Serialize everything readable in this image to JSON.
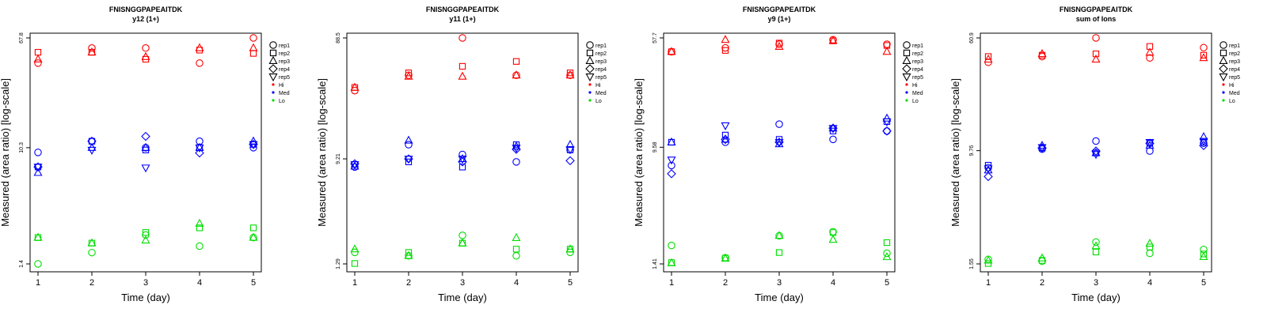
{
  "colors": {
    "Hi": "#ff0000",
    "Med": "#0000ff",
    "Lo": "#00dd00"
  },
  "legend": {
    "shapes": [
      {
        "label": "rep1",
        "icon": "circle-icon"
      },
      {
        "label": "rep2",
        "icon": "square-icon"
      },
      {
        "label": "rep3",
        "icon": "triangle-up-icon"
      },
      {
        "label": "rep4",
        "icon": "diamond-icon"
      },
      {
        "label": "rep5",
        "icon": "triangle-down-icon"
      }
    ],
    "groups": [
      {
        "label": "Hi",
        "color": "#ff0000"
      },
      {
        "label": "Med",
        "color": "#0000ff"
      },
      {
        "label": "Lo",
        "color": "#00dd00"
      }
    ]
  },
  "chart_data": [
    {
      "type": "scatter",
      "title": "FNISNGGPAPEAITDK",
      "subtitle": "y12 (1+)",
      "xlabel": "Time (day)",
      "ylabel": "Measured (area ratio) [log-scale]",
      "x_ticks": [
        "1",
        "2",
        "3",
        "4",
        "5"
      ],
      "y_ticks": [
        "1.4",
        "10.3",
        "67.8"
      ],
      "y_scale": "log",
      "ylim": [
        1.4,
        67.8
      ],
      "series": [
        {
          "rep": "rep1",
          "group": "Hi",
          "x": [
            1,
            2,
            3,
            4,
            5
          ],
          "y": [
            44.0,
            57.0,
            57.0,
            44.0,
            67.8
          ]
        },
        {
          "rep": "rep2",
          "group": "Hi",
          "x": [
            1,
            2,
            3,
            4,
            5
          ],
          "y": [
            53.0,
            53.0,
            47.0,
            55.0,
            52.0
          ]
        },
        {
          "rep": "rep3",
          "group": "Hi",
          "x": [
            1,
            2,
            3,
            4,
            5
          ],
          "y": [
            47.0,
            53.0,
            49.0,
            57.0,
            57.0
          ]
        },
        {
          "rep": "rep1",
          "group": "Med",
          "x": [
            1,
            2,
            3,
            4,
            5
          ],
          "y": [
            9.5,
            11.5,
            10.3,
            11.5,
            10.3
          ]
        },
        {
          "rep": "rep2",
          "group": "Med",
          "x": [
            1,
            2,
            3,
            4,
            5
          ],
          "y": [
            7.4,
            11.5,
            9.9,
            10.3,
            10.9
          ]
        },
        {
          "rep": "rep3",
          "group": "Med",
          "x": [
            1,
            2,
            3,
            4,
            5
          ],
          "y": [
            6.7,
            10.3,
            10.3,
            10.3,
            11.5
          ]
        },
        {
          "rep": "rep4",
          "group": "Med",
          "x": [
            1,
            2,
            3,
            4,
            5
          ],
          "y": [
            7.4,
            11.5,
            12.5,
            9.4,
            10.9
          ]
        },
        {
          "rep": "rep5",
          "group": "Med",
          "x": [
            1,
            2,
            3,
            4,
            5
          ],
          "y": [
            7.4,
            9.9,
            7.3,
            10.3,
            10.9
          ]
        },
        {
          "rep": "rep1",
          "group": "Lo",
          "x": [
            1,
            2,
            3,
            4,
            5
          ],
          "y": [
            1.4,
            1.7,
            2.3,
            1.9,
            2.2
          ]
        },
        {
          "rep": "rep2",
          "group": "Lo",
          "x": [
            1,
            2,
            3,
            4,
            5
          ],
          "y": [
            2.2,
            2.0,
            2.4,
            2.6,
            2.6
          ]
        },
        {
          "rep": "rep3",
          "group": "Lo",
          "x": [
            1,
            2,
            3,
            4,
            5
          ],
          "y": [
            2.2,
            2.0,
            2.1,
            2.8,
            2.2
          ]
        }
      ]
    },
    {
      "type": "scatter",
      "title": "FNISNGGPAPEAITDK",
      "subtitle": "y11 (1+)",
      "xlabel": "Time (day)",
      "ylabel": "Measured (area ratio) [log-scale]",
      "x_ticks": [
        "1",
        "2",
        "3",
        "4",
        "5"
      ],
      "y_ticks": [
        "1.29",
        "9.21",
        "88.5"
      ],
      "y_scale": "log",
      "ylim": [
        1.29,
        88.5
      ],
      "series": [
        {
          "rep": "rep1",
          "group": "Hi",
          "x": [
            1,
            2,
            3,
            4,
            5
          ],
          "y": [
            33.0,
            44.0,
            88.5,
            44.0,
            44.0
          ]
        },
        {
          "rep": "rep2",
          "group": "Hi",
          "x": [
            1,
            2,
            3,
            4,
            5
          ],
          "y": [
            35.0,
            46.0,
            52.0,
            57.0,
            46.0
          ]
        },
        {
          "rep": "rep3",
          "group": "Hi",
          "x": [
            1,
            2,
            3,
            4,
            5
          ],
          "y": [
            35.0,
            43.0,
            43.0,
            44.0,
            44.0
          ]
        },
        {
          "rep": "rep1",
          "group": "Med",
          "x": [
            1,
            2,
            3,
            4,
            5
          ],
          "y": [
            7.9,
            12.0,
            10.0,
            8.7,
            10.9
          ]
        },
        {
          "rep": "rep2",
          "group": "Med",
          "x": [
            1,
            2,
            3,
            4,
            5
          ],
          "y": [
            8.3,
            8.7,
            7.9,
            12.0,
            10.9
          ]
        },
        {
          "rep": "rep3",
          "group": "Med",
          "x": [
            1,
            2,
            3,
            4,
            5
          ],
          "y": [
            8.0,
            13.0,
            9.2,
            11.6,
            12.0
          ]
        },
        {
          "rep": "rep4",
          "group": "Med",
          "x": [
            1,
            2,
            3,
            4,
            5
          ],
          "y": [
            8.4,
            9.2,
            8.7,
            11.0,
            8.9
          ]
        },
        {
          "rep": "rep5",
          "group": "Med",
          "x": [
            1,
            2,
            3,
            4,
            5
          ],
          "y": [
            8.3,
            9.2,
            9.2,
            11.3,
            11.0
          ]
        },
        {
          "rep": "rep1",
          "group": "Lo",
          "x": [
            1,
            2,
            3,
            4,
            5
          ],
          "y": [
            1.6,
            1.5,
            2.2,
            1.5,
            1.6
          ]
        },
        {
          "rep": "rep2",
          "group": "Lo",
          "x": [
            1,
            2,
            3,
            4,
            5
          ],
          "y": [
            1.3,
            1.6,
            1.9,
            1.7,
            1.7
          ]
        },
        {
          "rep": "rep3",
          "group": "Lo",
          "x": [
            1,
            2,
            3,
            4,
            5
          ],
          "y": [
            1.7,
            1.5,
            1.9,
            2.1,
            1.7
          ]
        }
      ]
    },
    {
      "type": "scatter",
      "title": "FNISNGGPAPEAITDK",
      "subtitle": "y9 (1+)",
      "xlabel": "Time (day)",
      "ylabel": "Measured (area ratio) [log-scale]",
      "x_ticks": [
        "1",
        "2",
        "3",
        "4",
        "5"
      ],
      "y_ticks": [
        "1.41",
        "9.58",
        "57.7"
      ],
      "y_scale": "log",
      "ylim": [
        1.41,
        57.7
      ],
      "series": [
        {
          "rep": "rep1",
          "group": "Hi",
          "x": [
            1,
            2,
            3,
            4,
            5
          ],
          "y": [
            46.0,
            49.0,
            52.0,
            56.0,
            52.0
          ]
        },
        {
          "rep": "rep2",
          "group": "Hi",
          "x": [
            1,
            2,
            3,
            4,
            5
          ],
          "y": [
            46.0,
            47.0,
            53.0,
            55.0,
            51.0
          ]
        },
        {
          "rep": "rep3",
          "group": "Hi",
          "x": [
            1,
            2,
            3,
            4,
            5
          ],
          "y": [
            46.0,
            56.0,
            50.0,
            55.0,
            46.0
          ]
        },
        {
          "rep": "rep1",
          "group": "Med",
          "x": [
            1,
            2,
            3,
            4,
            5
          ],
          "y": [
            7.1,
            10.4,
            14.0,
            10.9,
            12.5
          ]
        },
        {
          "rep": "rep2",
          "group": "Med",
          "x": [
            1,
            2,
            3,
            4,
            5
          ],
          "y": [
            10.4,
            11.7,
            10.9,
            12.5,
            14.6
          ]
        },
        {
          "rep": "rep3",
          "group": "Med",
          "x": [
            1,
            2,
            3,
            4,
            5
          ],
          "y": [
            10.4,
            10.9,
            10.1,
            13.1,
            15.4
          ]
        },
        {
          "rep": "rep4",
          "group": "Med",
          "x": [
            1,
            2,
            3,
            4,
            5
          ],
          "y": [
            6.2,
            10.9,
            10.4,
            13.1,
            12.5
          ]
        },
        {
          "rep": "rep5",
          "group": "Med",
          "x": [
            1,
            2,
            3,
            4,
            5
          ],
          "y": [
            7.8,
            13.7,
            10.4,
            13.1,
            14.6
          ]
        },
        {
          "rep": "rep1",
          "group": "Lo",
          "x": [
            1,
            2,
            3,
            4,
            5
          ],
          "y": [
            1.91,
            1.56,
            2.24,
            2.39,
            1.68
          ]
        },
        {
          "rep": "rep2",
          "group": "Lo",
          "x": [
            1,
            2,
            3,
            4,
            5
          ],
          "y": [
            1.44,
            1.55,
            1.7,
            2.36,
            2.0
          ]
        },
        {
          "rep": "rep3",
          "group": "Lo",
          "x": [
            1,
            2,
            3,
            4,
            5
          ],
          "y": [
            1.43,
            1.54,
            2.24,
            2.1,
            1.58
          ]
        }
      ]
    },
    {
      "type": "scatter",
      "title": "FNISNGGPAPEAITDK",
      "subtitle": "sum of Ions",
      "xlabel": "Time (day)",
      "ylabel": "Measured (area ratio) [log-scale]",
      "x_ticks": [
        "1",
        "2",
        "3",
        "4",
        "5"
      ],
      "y_ticks": [
        "1.55",
        "9.76",
        "60.9"
      ],
      "y_scale": "log",
      "ylim": [
        1.55,
        60.9
      ],
      "series": [
        {
          "rep": "rep1",
          "group": "Hi",
          "x": [
            1,
            2,
            3,
            4,
            5
          ],
          "y": [
            41.0,
            45.0,
            60.9,
            44.0,
            52.0
          ]
        },
        {
          "rep": "rep2",
          "group": "Hi",
          "x": [
            1,
            2,
            3,
            4,
            5
          ],
          "y": [
            45.0,
            46.0,
            47.0,
            53.0,
            46.0
          ]
        },
        {
          "rep": "rep3",
          "group": "Hi",
          "x": [
            1,
            2,
            3,
            4,
            5
          ],
          "y": [
            43.0,
            47.0,
            43.0,
            48.0,
            44.0
          ]
        },
        {
          "rep": "rep1",
          "group": "Med",
          "x": [
            1,
            2,
            3,
            4,
            5
          ],
          "y": [
            7.4,
            10.0,
            11.4,
            9.7,
            11.0
          ]
        },
        {
          "rep": "rep2",
          "group": "Med",
          "x": [
            1,
            2,
            3,
            4,
            5
          ],
          "y": [
            7.7,
            10.2,
            9.4,
            11.0,
            11.2
          ]
        },
        {
          "rep": "rep3",
          "group": "Med",
          "x": [
            1,
            2,
            3,
            4,
            5
          ],
          "y": [
            7.1,
            10.6,
            9.4,
            10.6,
            12.2
          ]
        },
        {
          "rep": "rep4",
          "group": "Med",
          "x": [
            1,
            2,
            3,
            4,
            5
          ],
          "y": [
            6.4,
            10.2,
            9.7,
            11.0,
            10.6
          ]
        },
        {
          "rep": "rep5",
          "group": "Med",
          "x": [
            1,
            2,
            3,
            4,
            5
          ],
          "y": [
            7.3,
            10.3,
            9.2,
            11.2,
            11.4
          ]
        },
        {
          "rep": "rep1",
          "group": "Lo",
          "x": [
            1,
            2,
            3,
            4,
            5
          ],
          "y": [
            1.67,
            1.62,
            2.21,
            1.84,
            1.96
          ]
        },
        {
          "rep": "rep2",
          "group": "Lo",
          "x": [
            1,
            2,
            3,
            4,
            5
          ],
          "y": [
            1.56,
            1.64,
            1.88,
            2.04,
            1.82
          ]
        },
        {
          "rep": "rep3",
          "group": "Lo",
          "x": [
            1,
            2,
            3,
            4,
            5
          ],
          "y": [
            1.64,
            1.7,
            2.07,
            2.16,
            1.74
          ]
        }
      ]
    }
  ]
}
